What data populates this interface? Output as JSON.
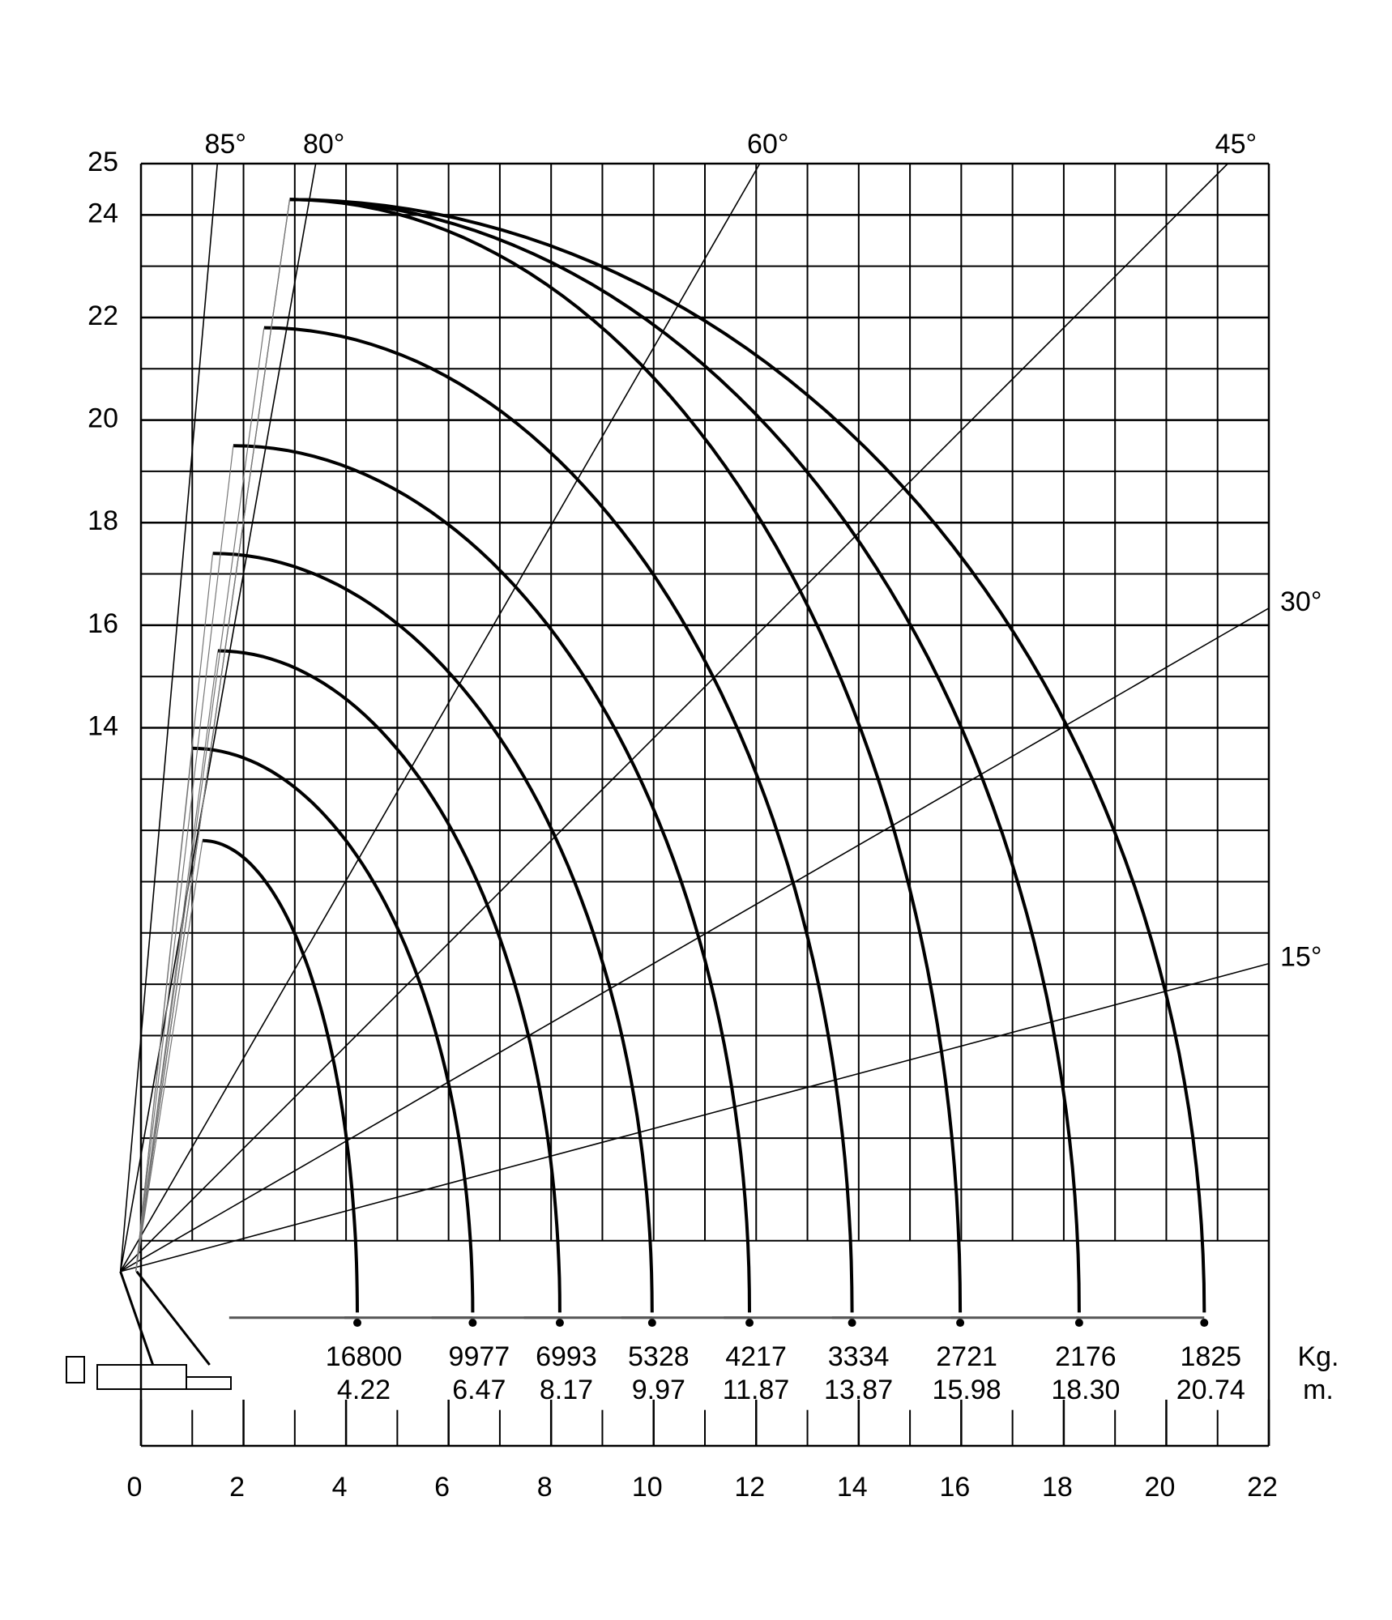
{
  "chart_data": {
    "type": "crane",
    "xlim": [
      0,
      22
    ],
    "ylim": [
      0,
      25
    ],
    "xticks": [
      0,
      2,
      4,
      6,
      8,
      10,
      12,
      14,
      16,
      18,
      20,
      22
    ],
    "yticks": [
      14,
      16,
      18,
      20,
      22,
      24,
      25
    ],
    "angles": [
      {
        "value": 85,
        "label": "85°"
      },
      {
        "value": 80,
        "label": "80°"
      },
      {
        "value": 60,
        "label": "60°"
      },
      {
        "value": 45,
        "label": "45°"
      },
      {
        "value": 30,
        "label": "30°"
      },
      {
        "value": 15,
        "label": "15°"
      }
    ],
    "load_unit": "Kg.",
    "radius_unit": "m.",
    "loads": [
      16800,
      9977,
      6993,
      5328,
      4217,
      3334,
      2721,
      2176,
      1825
    ],
    "radius": [
      4.22,
      6.47,
      8.17,
      9.97,
      11.87,
      13.87,
      15.98,
      18.3,
      20.74
    ],
    "radius_labels": [
      "4.22",
      "6.47",
      "8.17",
      "9.97",
      "11.87",
      "13.87",
      "15.98",
      "18.30",
      "20.74"
    ],
    "tip_x": [
      1.2,
      1.0,
      1.5,
      1.4,
      1.8,
      2.4,
      2.9,
      2.9,
      2.9
    ],
    "tip_heights": [
      11.8,
      13.6,
      15.5,
      17.4,
      19.5,
      21.8,
      24.3,
      24.3,
      24.3
    ],
    "color": "#000000"
  }
}
